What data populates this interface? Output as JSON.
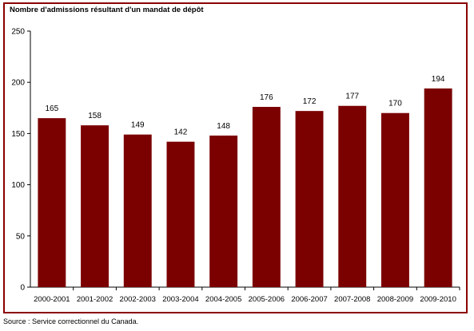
{
  "colors": {
    "bar": "#7b0000",
    "frame": "#8b0000",
    "axis": "#000000"
  },
  "source_note": "Source : Service correctionnel du Canada.",
  "chart_data": {
    "type": "bar",
    "title": "",
    "ylabel": "Nombre d'admissions résultant d'un mandat de dépôt",
    "xlabel": "",
    "categories": [
      "2000-2001",
      "2001-2002",
      "2002-2003",
      "2003-2004",
      "2004-2005",
      "2005-2006",
      "2006-2007",
      "2007-2008",
      "2008-2009",
      "2009-2010"
    ],
    "values": [
      165,
      158,
      149,
      142,
      148,
      176,
      172,
      177,
      170,
      194
    ],
    "data_labels": [
      "165",
      "158",
      "149",
      "142",
      "148",
      "176",
      "172",
      "177",
      "170",
      "194"
    ],
    "ylim": [
      0,
      250
    ],
    "yticks": [
      0,
      50,
      100,
      150,
      200,
      250
    ],
    "ytick_labels": [
      "0",
      "50",
      "100",
      "150",
      "200",
      "250"
    ],
    "grid": false,
    "legend": "none"
  }
}
